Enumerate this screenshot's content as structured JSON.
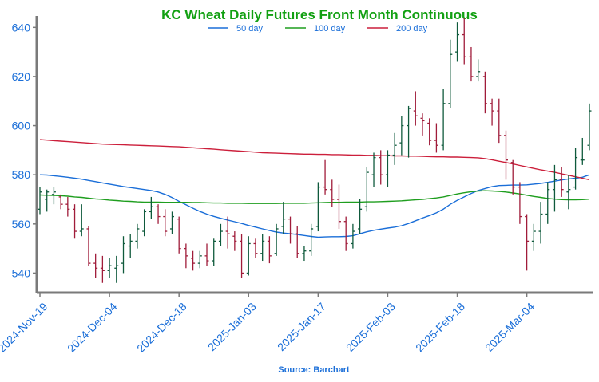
{
  "chart_data": {
    "type": "ohlc",
    "title": "KC Wheat Daily Futures Front Month Continuous",
    "source": "Source: Barchart",
    "xlabel": "",
    "ylabel": "",
    "ylim": [
      533,
      644
    ],
    "yticks": [
      540,
      560,
      580,
      600,
      620,
      640
    ],
    "xtick_labels": [
      "2024-Nov-19",
      "2024-Dec-04",
      "2024-Dec-18",
      "2025-Jan-03",
      "2025-Jan-17",
      "2025-Feb-03",
      "2025-Feb-18",
      "2025-Mar-04"
    ],
    "xtick_indices": [
      0,
      10,
      20,
      30,
      40,
      50,
      60,
      70
    ],
    "legend_position": "top-center",
    "grid": false,
    "colors": {
      "up": "#0f5a3c",
      "down": "#a01c3a",
      "title": "#12a012",
      "ticks": "#1a6ed8",
      "source": "#1a6ed8",
      "axis": "#7a7a7a"
    },
    "candles": [
      {
        "date": "2024-Nov-19",
        "o": 566,
        "h": 575,
        "l": 564,
        "c": 573
      },
      {
        "date": "",
        "o": 570,
        "h": 574,
        "l": 565,
        "c": 573
      },
      {
        "date": "",
        "o": 572,
        "h": 575,
        "l": 568,
        "c": 573
      },
      {
        "date": "",
        "o": 571,
        "h": 572,
        "l": 566,
        "c": 568
      },
      {
        "date": "",
        "o": 568,
        "h": 571,
        "l": 563,
        "c": 566
      },
      {
        "date": "",
        "o": 566,
        "h": 568,
        "l": 554,
        "c": 557
      },
      {
        "date": "",
        "o": 557,
        "h": 568,
        "l": 555,
        "c": 558
      },
      {
        "date": "",
        "o": 558,
        "h": 559,
        "l": 543,
        "c": 544
      },
      {
        "date": "",
        "o": 544,
        "h": 548,
        "l": 538,
        "c": 542
      },
      {
        "date": "",
        "o": 542,
        "h": 547,
        "l": 536,
        "c": 541
      },
      {
        "date": "2024-Dec-04",
        "o": 541,
        "h": 546,
        "l": 538,
        "c": 543
      },
      {
        "date": "",
        "o": 542,
        "h": 547,
        "l": 536,
        "c": 543
      },
      {
        "date": "",
        "o": 544,
        "h": 555,
        "l": 540,
        "c": 552
      },
      {
        "date": "",
        "o": 551,
        "h": 556,
        "l": 546,
        "c": 553
      },
      {
        "date": "",
        "o": 553,
        "h": 560,
        "l": 550,
        "c": 558
      },
      {
        "date": "",
        "o": 557,
        "h": 566,
        "l": 555,
        "c": 565
      },
      {
        "date": "",
        "o": 565,
        "h": 571,
        "l": 562,
        "c": 567
      },
      {
        "date": "",
        "o": 567,
        "h": 568,
        "l": 560,
        "c": 563
      },
      {
        "date": "",
        "o": 563,
        "h": 566,
        "l": 555,
        "c": 557
      },
      {
        "date": "",
        "o": 558,
        "h": 565,
        "l": 556,
        "c": 563
      },
      {
        "date": "2024-Dec-18",
        "o": 562,
        "h": 563,
        "l": 548,
        "c": 550
      },
      {
        "date": "",
        "o": 550,
        "h": 552,
        "l": 542,
        "c": 547
      },
      {
        "date": "",
        "o": 546,
        "h": 549,
        "l": 541,
        "c": 544
      },
      {
        "date": "",
        "o": 544,
        "h": 549,
        "l": 542,
        "c": 547
      },
      {
        "date": "",
        "o": 547,
        "h": 552,
        "l": 543,
        "c": 545
      },
      {
        "date": "",
        "o": 545,
        "h": 554,
        "l": 543,
        "c": 553
      },
      {
        "date": "",
        "o": 553,
        "h": 560,
        "l": 551,
        "c": 557
      },
      {
        "date": "",
        "o": 557,
        "h": 563,
        "l": 550,
        "c": 556
      },
      {
        "date": "",
        "o": 555,
        "h": 557,
        "l": 549,
        "c": 553
      },
      {
        "date": "",
        "o": 553,
        "h": 556,
        "l": 538,
        "c": 540
      },
      {
        "date": "2025-Jan-03",
        "o": 540,
        "h": 555,
        "l": 539,
        "c": 552
      },
      {
        "date": "",
        "o": 552,
        "h": 554,
        "l": 546,
        "c": 548
      },
      {
        "date": "",
        "o": 548,
        "h": 556,
        "l": 545,
        "c": 553
      },
      {
        "date": "",
        "o": 553,
        "h": 555,
        "l": 544,
        "c": 547
      },
      {
        "date": "",
        "o": 548,
        "h": 560,
        "l": 547,
        "c": 558
      },
      {
        "date": "",
        "o": 559,
        "h": 569,
        "l": 556,
        "c": 562
      },
      {
        "date": "",
        "o": 562,
        "h": 563,
        "l": 552,
        "c": 556
      },
      {
        "date": "",
        "o": 556,
        "h": 559,
        "l": 546,
        "c": 548
      },
      {
        "date": "",
        "o": 548,
        "h": 551,
        "l": 545,
        "c": 549
      },
      {
        "date": "",
        "o": 549,
        "h": 560,
        "l": 547,
        "c": 558
      },
      {
        "date": "2025-Jan-17",
        "o": 559,
        "h": 577,
        "l": 557,
        "c": 575
      },
      {
        "date": "",
        "o": 575,
        "h": 586,
        "l": 572,
        "c": 574
      },
      {
        "date": "",
        "o": 574,
        "h": 578,
        "l": 567,
        "c": 570
      },
      {
        "date": "",
        "o": 570,
        "h": 576,
        "l": 558,
        "c": 561
      },
      {
        "date": "",
        "o": 561,
        "h": 563,
        "l": 549,
        "c": 552
      },
      {
        "date": "",
        "o": 552,
        "h": 560,
        "l": 550,
        "c": 557
      },
      {
        "date": "",
        "o": 558,
        "h": 570,
        "l": 556,
        "c": 566
      },
      {
        "date": "",
        "o": 567,
        "h": 583,
        "l": 565,
        "c": 581
      },
      {
        "date": "",
        "o": 580,
        "h": 589,
        "l": 575,
        "c": 587
      },
      {
        "date": "",
        "o": 587,
        "h": 590,
        "l": 576,
        "c": 580
      },
      {
        "date": "2025-Feb-03",
        "o": 580,
        "h": 590,
        "l": 575,
        "c": 588
      },
      {
        "date": "",
        "o": 588,
        "h": 597,
        "l": 584,
        "c": 592
      },
      {
        "date": "",
        "o": 593,
        "h": 604,
        "l": 588,
        "c": 600
      },
      {
        "date": "",
        "o": 600,
        "h": 608,
        "l": 587,
        "c": 607
      },
      {
        "date": "",
        "o": 606,
        "h": 614,
        "l": 600,
        "c": 604
      },
      {
        "date": "",
        "o": 603,
        "h": 605,
        "l": 596,
        "c": 602
      },
      {
        "date": "",
        "o": 601,
        "h": 603,
        "l": 592,
        "c": 594
      },
      {
        "date": "",
        "o": 594,
        "h": 601,
        "l": 589,
        "c": 592
      },
      {
        "date": "",
        "o": 592,
        "h": 615,
        "l": 590,
        "c": 609
      },
      {
        "date": "",
        "o": 609,
        "h": 635,
        "l": 607,
        "c": 629
      },
      {
        "date": "2025-Feb-18",
        "o": 630,
        "h": 642,
        "l": 626,
        "c": 637
      },
      {
        "date": "",
        "o": 637,
        "h": 644,
        "l": 625,
        "c": 628
      },
      {
        "date": "",
        "o": 628,
        "h": 632,
        "l": 618,
        "c": 620
      },
      {
        "date": "",
        "o": 620,
        "h": 627,
        "l": 618,
        "c": 622
      },
      {
        "date": "",
        "o": 620,
        "h": 622,
        "l": 605,
        "c": 609
      },
      {
        "date": "",
        "o": 609,
        "h": 611,
        "l": 600,
        "c": 606
      },
      {
        "date": "",
        "o": 606,
        "h": 611,
        "l": 593,
        "c": 596
      },
      {
        "date": "",
        "o": 596,
        "h": 598,
        "l": 578,
        "c": 586
      },
      {
        "date": "",
        "o": 585,
        "h": 586,
        "l": 572,
        "c": 575
      },
      {
        "date": "",
        "o": 575,
        "h": 577,
        "l": 560,
        "c": 563
      },
      {
        "date": "2025-Mar-04",
        "o": 563,
        "h": 564,
        "l": 541,
        "c": 553
      },
      {
        "date": "",
        "o": 553,
        "h": 560,
        "l": 549,
        "c": 557
      },
      {
        "date": "",
        "o": 557,
        "h": 569,
        "l": 552,
        "c": 564
      },
      {
        "date": "",
        "o": 564,
        "h": 577,
        "l": 560,
        "c": 574
      },
      {
        "date": "",
        "o": 574,
        "h": 584,
        "l": 565,
        "c": 578
      },
      {
        "date": "",
        "o": 578,
        "h": 583,
        "l": 571,
        "c": 574
      },
      {
        "date": "",
        "o": 573,
        "h": 580,
        "l": 566,
        "c": 574
      },
      {
        "date": "",
        "o": 575,
        "h": 591,
        "l": 574,
        "c": 587
      },
      {
        "date": "",
        "o": 586,
        "h": 595,
        "l": 584,
        "c": 586
      },
      {
        "date": "",
        "o": 592,
        "h": 609,
        "l": 590,
        "c": 606
      }
    ],
    "series": [
      {
        "name": "50 day",
        "color": "#1a6ed8",
        "key": "sma50",
        "values": [
          580,
          579.9,
          579.6,
          579.3,
          579,
          578.6,
          578.2,
          577.7,
          577.2,
          576.7,
          576.2,
          575.7,
          575.2,
          574.8,
          574.4,
          574,
          573.6,
          573,
          572,
          570.7,
          569.2,
          567.8,
          566.4,
          565.1,
          564,
          563.1,
          562.3,
          561.6,
          560.9,
          560.2,
          559.4,
          558.7,
          558,
          557.3,
          556.7,
          556.3,
          556,
          555.7,
          555.3,
          554.9,
          554.6,
          554.7,
          554.8,
          554.8,
          554.9,
          555.2,
          556,
          556.8,
          557.4,
          557.9,
          558.3,
          558.7,
          559.3,
          560.2,
          561.3,
          562.4,
          563.4,
          564.5,
          566,
          568,
          569.6,
          571,
          572.4,
          573.6,
          574.4,
          575.2,
          575.6,
          575.7,
          575.8,
          575.8,
          575.9,
          576.2,
          576.5,
          576.9,
          577.4,
          577.9,
          578.3,
          578.6,
          579,
          580
        ]
      },
      {
        "name": "100 day",
        "color": "#1f9e1f",
        "key": "sma100",
        "values": [
          571.8,
          571.7,
          571.6,
          571.5,
          571.3,
          571,
          570.8,
          570.5,
          570.2,
          570,
          569.7,
          569.5,
          569.3,
          569.2,
          569,
          568.9,
          568.9,
          568.9,
          568.8,
          568.8,
          568.8,
          568.8,
          568.7,
          568.7,
          568.6,
          568.5,
          568.5,
          568.4,
          568.4,
          568.4,
          568.3,
          568.3,
          568.3,
          568.3,
          568.3,
          568.4,
          568.4,
          568.4,
          568.4,
          568.5,
          568.6,
          568.7,
          568.8,
          568.8,
          568.9,
          568.9,
          568.9,
          569,
          569,
          569.1,
          569.2,
          569.3,
          569.4,
          569.6,
          569.8,
          570,
          570.3,
          570.6,
          571,
          571.6,
          572.2,
          572.7,
          573.1,
          573.4,
          573.5,
          573.4,
          573.2,
          573,
          572.6,
          572.2,
          571.7,
          571.2,
          570.8,
          570.4,
          570.1,
          569.9,
          569.8,
          569.8,
          569.9,
          570.1
        ]
      },
      {
        "name": "200 day",
        "color": "#cc1f3b",
        "key": "sma200",
        "values": [
          594.3,
          594.1,
          593.9,
          593.7,
          593.5,
          593.3,
          593.1,
          592.9,
          592.7,
          592.5,
          592.4,
          592.3,
          592.2,
          592.1,
          592,
          591.9,
          591.8,
          591.7,
          591.6,
          591.5,
          591.4,
          591.2,
          591,
          590.8,
          590.6,
          590.4,
          590.2,
          590,
          589.8,
          589.6,
          589.4,
          589.2,
          589,
          588.9,
          588.8,
          588.7,
          588.6,
          588.5,
          588.4,
          588.4,
          588.3,
          588.3,
          588.2,
          588.2,
          588.1,
          588,
          588,
          587.9,
          587.9,
          587.8,
          587.8,
          587.7,
          587.7,
          587.6,
          587.6,
          587.5,
          587.4,
          587.3,
          587.3,
          587.2,
          587.2,
          587.1,
          587,
          586.9,
          586.6,
          586.1,
          585.5,
          585,
          584.4,
          583.8,
          583.2,
          582.6,
          582,
          581.5,
          581,
          580.4,
          579.8,
          579.2,
          578.6,
          578
        ]
      }
    ]
  }
}
